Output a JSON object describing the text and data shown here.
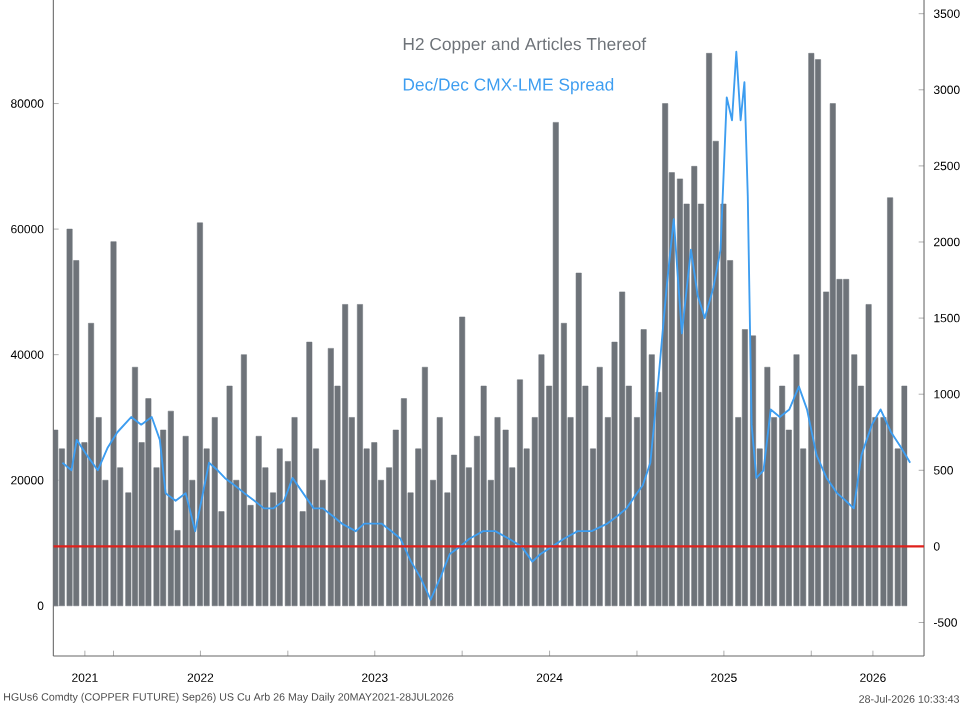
{
  "chart_data": {
    "type": "bar",
    "series": [
      {
        "name": "H2 Copper and Articles Thereof",
        "color": "#6e7379",
        "x": [
          "2021-09-01",
          "2021-09-15",
          "2021-10-01",
          "2021-10-15",
          "2021-11-01",
          "2021-11-15",
          "2021-12-01",
          "2021-12-15",
          "2022-01-01",
          "2022-01-15",
          "2022-02-01",
          "2022-02-15",
          "2022-03-01",
          "2022-03-15",
          "2022-04-01",
          "2022-04-15",
          "2022-05-01",
          "2022-05-15",
          "2022-06-01",
          "2022-06-15",
          "2022-07-01",
          "2022-07-15",
          "2022-08-01",
          "2022-08-15",
          "2022-09-01",
          "2022-09-15",
          "2022-10-01",
          "2022-10-15",
          "2022-11-01",
          "2022-11-15",
          "2022-12-01",
          "2022-12-15",
          "2023-01-01",
          "2023-01-15",
          "2023-02-01",
          "2023-02-15",
          "2023-03-01",
          "2023-03-15",
          "2023-04-01",
          "2023-04-15",
          "2023-05-01",
          "2023-05-15",
          "2023-06-01",
          "2023-06-15",
          "2023-07-01",
          "2023-07-15",
          "2023-08-01",
          "2023-08-15",
          "2023-09-01",
          "2023-09-15",
          "2023-10-01",
          "2023-10-15",
          "2023-11-01",
          "2023-11-15",
          "2023-12-01",
          "2023-12-15",
          "2024-01-01",
          "2024-01-15",
          "2024-02-01",
          "2024-02-15",
          "2024-03-01",
          "2024-03-15",
          "2024-04-01",
          "2024-04-15",
          "2024-05-01",
          "2024-05-15",
          "2024-06-01",
          "2024-06-15",
          "2024-07-01",
          "2024-07-15",
          "2024-08-01",
          "2024-08-15",
          "2024-09-01",
          "2024-09-15",
          "2024-10-01",
          "2024-10-15",
          "2024-11-01",
          "2024-11-15",
          "2024-12-01",
          "2024-12-15",
          "2025-01-01",
          "2025-01-15",
          "2025-02-01",
          "2025-02-15",
          "2025-03-01",
          "2025-03-15",
          "2025-04-01",
          "2025-04-15",
          "2025-05-01",
          "2025-05-15",
          "2025-06-01",
          "2025-06-15",
          "2025-07-01",
          "2025-07-15",
          "2025-08-01",
          "2025-08-15",
          "2025-09-01",
          "2025-09-15",
          "2025-10-01",
          "2025-10-15",
          "2025-11-01",
          "2025-11-15",
          "2025-12-01",
          "2025-12-15",
          "2026-01-01",
          "2026-01-15",
          "2026-02-01",
          "2026-02-15",
          "2026-03-01",
          "2026-03-15",
          "2026-04-01",
          "2026-04-15",
          "2026-05-01",
          "2026-05-15",
          "2026-06-01",
          "2026-06-15",
          "2026-07-01",
          "2026-07-15"
        ],
        "values": [
          28000,
          25000,
          60000,
          55000,
          26000,
          45000,
          30000,
          20000,
          58000,
          22000,
          18000,
          38000,
          26000,
          33000,
          22000,
          28000,
          31000,
          12000,
          27000,
          20000,
          61000,
          25000,
          30000,
          15000,
          35000,
          20000,
          40000,
          16000,
          27000,
          22000,
          18000,
          25000,
          23000,
          30000,
          15000,
          42000,
          25000,
          20000,
          41000,
          35000,
          48000,
          30000,
          48000,
          25000,
          26000,
          20000,
          22000,
          28000,
          33000,
          18000,
          25000,
          38000,
          20000,
          30000,
          18000,
          24000,
          46000,
          22000,
          27000,
          35000,
          20000,
          30000,
          28000,
          22000,
          36000,
          25000,
          30000,
          40000,
          35000,
          77000,
          45000,
          30000,
          53000,
          35000,
          25000,
          38000,
          30000,
          42000,
          50000,
          35000,
          30000,
          44000,
          40000,
          34000,
          80000,
          69000,
          68000,
          64000,
          70000,
          64000,
          88000,
          74000,
          64000,
          55000,
          30000,
          44000,
          43000,
          25000,
          38000,
          30000,
          35000,
          28000,
          40000,
          25000,
          88000,
          87000,
          50000,
          80000,
          52000,
          52000,
          40000,
          35000,
          48000,
          30000,
          30000,
          65000,
          25000,
          35000
        ]
      },
      {
        "name": "Dec/Dec CMX-LME Spread",
        "type": "line",
        "axis": "y2",
        "color": "#3d9df0",
        "x": [
          "2021-09-16",
          "2021-10-05",
          "2021-10-16",
          "2021-11-06",
          "2021-11-29",
          "2021-12-20",
          "2022-01-09",
          "2022-02-07",
          "2022-02-28",
          "2022-03-22",
          "2022-04-08",
          "2022-04-20",
          "2022-05-11",
          "2022-06-01",
          "2022-06-21",
          "2022-07-04",
          "2022-07-20",
          "2022-08-07",
          "2022-08-22",
          "2022-09-12",
          "2022-10-02",
          "2022-10-23",
          "2022-11-12",
          "2022-12-02",
          "2022-12-24",
          "2023-01-11",
          "2023-02-02",
          "2023-02-24",
          "2023-03-15",
          "2023-04-05",
          "2023-04-24",
          "2023-05-23",
          "2023-06-10",
          "2023-06-25",
          "2023-07-16",
          "2023-08-06",
          "2023-08-25",
          "2023-09-16",
          "2023-10-05",
          "2023-10-27",
          "2023-11-17",
          "2023-12-06",
          "2023-12-28",
          "2024-01-16",
          "2024-02-14",
          "2024-03-10",
          "2024-04-08",
          "2024-05-04",
          "2024-05-27",
          "2024-06-13",
          "2024-07-08",
          "2024-08-01",
          "2024-08-30",
          "2024-09-28",
          "2024-10-31",
          "2024-11-21",
          "2024-12-10",
          "2025-01-01",
          "2025-01-13",
          "2025-01-29",
          "2025-02-15",
          "2025-03-04",
          "2025-03-19",
          "2025-04-05",
          "2025-04-24",
          "2025-05-08",
          "2025-05-23",
          "2025-06-10",
          "2025-06-25",
          "2025-07-08",
          "2025-07-19",
          "2025-07-28",
          "2025-08-06",
          "2025-08-14",
          "2025-08-21",
          "2025-08-29",
          "2025-09-08",
          "2025-09-23",
          "2025-10-08",
          "2025-10-27",
          "2025-11-16",
          "2025-12-06",
          "2025-12-23",
          "2026-01-12",
          "2026-02-02",
          "2026-02-24",
          "2026-03-14",
          "2026-03-31",
          "2026-04-16",
          "2026-05-08",
          "2026-05-26",
          "2026-06-17",
          "2026-07-08",
          "2026-07-27"
        ],
        "values": [
          550,
          500,
          700,
          600,
          500,
          650,
          750,
          850,
          800,
          850,
          700,
          350,
          300,
          350,
          100,
          300,
          550,
          500,
          450,
          400,
          350,
          300,
          250,
          250,
          300,
          450,
          350,
          250,
          250,
          200,
          150,
          100,
          150,
          150,
          150,
          100,
          50,
          -100,
          -200,
          -350,
          -200,
          -50,
          0,
          50,
          100,
          100,
          50,
          0,
          -100,
          -50,
          0,
          50,
          100,
          100,
          150,
          200,
          250,
          350,
          400,
          550,
          1100,
          1700,
          2150,
          1400,
          1950,
          1650,
          1500,
          1700,
          1950,
          2950,
          2800,
          3250,
          2800,
          3050,
          2300,
          800,
          450,
          500,
          900,
          850,
          900,
          1050,
          900,
          600,
          450,
          350,
          300,
          250,
          600,
          800,
          900,
          750,
          650,
          550
        ]
      }
    ],
    "xlim": [
      "2021-08-28",
      "2026-08-25"
    ],
    "xticks": [
      {
        "value": "2021-11-02",
        "label": "2021"
      },
      {
        "value": "2022-01-01",
        "label": null
      },
      {
        "value": "2022-07-02",
        "label": "2022"
      },
      {
        "value": "2023-01-01",
        "label": null
      },
      {
        "value": "2023-07-02",
        "label": "2023"
      },
      {
        "value": "2024-01-01",
        "label": null
      },
      {
        "value": "2024-07-02",
        "label": "2024"
      },
      {
        "value": "2025-01-01",
        "label": null
      },
      {
        "value": "2025-07-02",
        "label": "2025"
      },
      {
        "value": "2026-01-01",
        "label": null
      },
      {
        "value": "2026-05-10",
        "label": "2026"
      }
    ],
    "ylim": [
      -8000,
      96500
    ],
    "yticks": [
      0,
      20000,
      40000,
      60000,
      80000
    ],
    "y2lim": [
      -720,
      3590
    ],
    "y2ticks": [
      -500,
      0,
      500,
      1000,
      1500,
      2000,
      2500,
      3000,
      3500
    ],
    "ref_lines": [
      {
        "axis": "y2",
        "value": 0,
        "color": "#e0201b"
      }
    ],
    "legend": "top",
    "annotations": [
      "HGUs6 Comdty (COPPER FUTURE)",
      "Sep26) US Cu Arb 26 May Daily 20MAY2021-28JUL2026",
      "28-Jul-2026 10:33:43"
    ]
  }
}
